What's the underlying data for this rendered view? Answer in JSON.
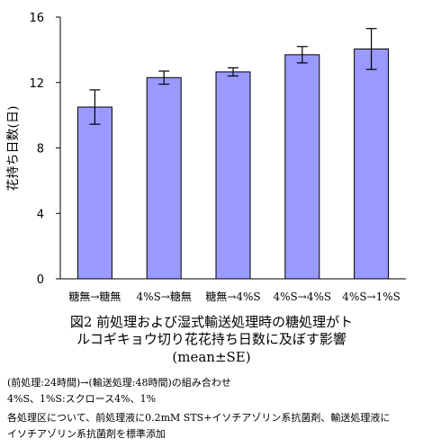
{
  "chart_data": {
    "type": "bar",
    "categories": [
      "糖無→糖無",
      "4%S→糖無",
      "糖無→4%S",
      "4%S→4%S",
      "4%S→1%S"
    ],
    "values": [
      10.5,
      12.3,
      12.65,
      13.7,
      14.05
    ],
    "errors": [
      1.05,
      0.4,
      0.25,
      0.5,
      1.25
    ],
    "ylabel": "花持ち日数(日)",
    "ylim": [
      0,
      16
    ],
    "yticks": [
      0,
      4,
      8,
      12,
      16
    ],
    "grid": false,
    "bar_color": "#9999ff"
  },
  "caption": {
    "line1": "図2 前処理および湿式輸送処理時の糖処理がト",
    "line2": "ルコギキョウ切り花花持ち日数に及ぼす影響",
    "line3": "(mean±SE)"
  },
  "notes": {
    "line1": "(前処理:24時間)→(輸送処理:48時間)の組み合わせ",
    "line2": "4%S、1%S:スクロース4%、1%",
    "line3": "各処理区について、前処理液に0.2mM STS+イソチアゾリン系抗菌剤、輸送処理液に",
    "line4": "イソチアゾリン系抗菌剤を標準添加"
  }
}
